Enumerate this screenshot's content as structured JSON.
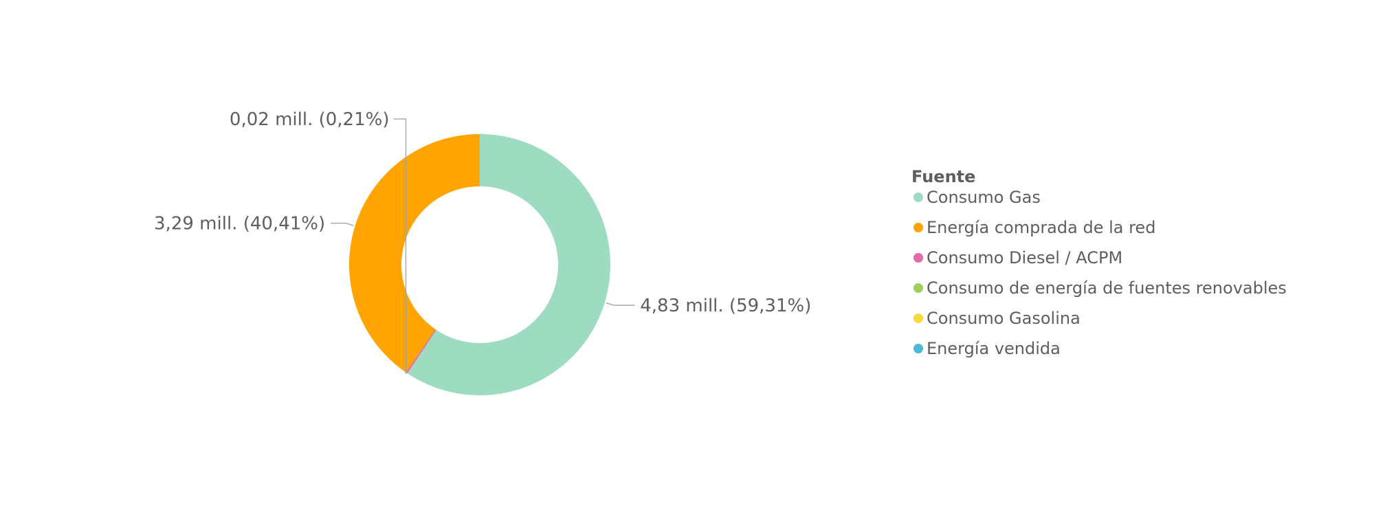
{
  "chart_data": {
    "type": "pie",
    "subtype": "donut",
    "legend_title": "Fuente",
    "legend_position": "right",
    "series": [
      {
        "name": "Consumo Gas",
        "value": 4.83,
        "percent": 59.31,
        "label": "4,83 mill. (59,31%)",
        "color": "#9ddcc1"
      },
      {
        "name": "Energía comprada de la red",
        "value": 3.29,
        "percent": 40.41,
        "label": "3,29 mill. (40,41%)",
        "color": "#ffa400"
      },
      {
        "name": "Consumo Diesel / ACPM",
        "value": 0.02,
        "percent": 0.21,
        "label": "0,02 mill. (0,21%)",
        "color": "#e66ba8"
      },
      {
        "name": "Consumo de energía de fuentes renovables",
        "value": 0,
        "percent": 0,
        "label": "",
        "color": "#9fcf5a"
      },
      {
        "name": "Consumo Gasolina",
        "value": 0,
        "percent": 0,
        "label": "",
        "color": "#f9d93b"
      },
      {
        "name": "Energía vendida",
        "value": 0,
        "percent": 0,
        "label": "",
        "color": "#4db8d8"
      }
    ]
  }
}
